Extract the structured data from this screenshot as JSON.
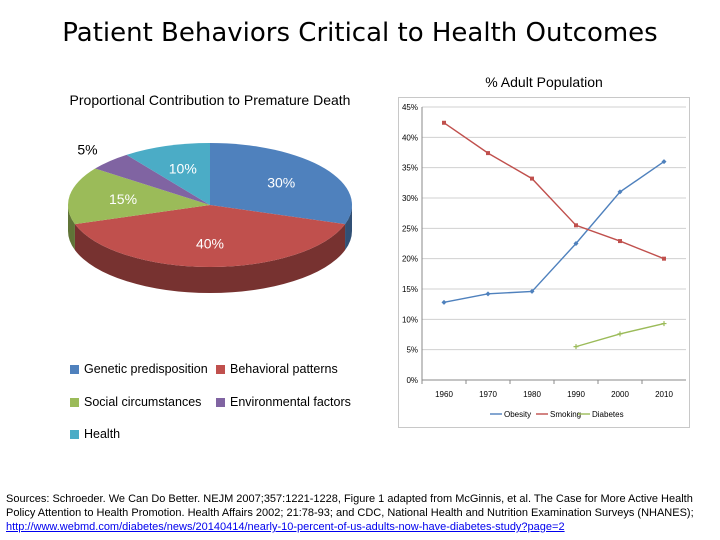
{
  "slide": {
    "title": "Patient Behaviors Critical to Health Outcomes"
  },
  "chart_data": [
    {
      "type": "pie",
      "title": "Proportional Contribution to Premature Death",
      "slices": [
        {
          "label": "Genetic predisposition",
          "value": 30,
          "value_label": "30%",
          "color": "#4f81bd"
        },
        {
          "label": "Behavioral patterns",
          "value": 40,
          "value_label": "40%",
          "color": "#c0504d"
        },
        {
          "label": "Social circumstances",
          "value": 15,
          "value_label": "15%",
          "color": "#9bbb59"
        },
        {
          "label": "Environmental factors",
          "value": 5,
          "value_label": "5%",
          "color": "#8064a2"
        },
        {
          "label": "Health",
          "value": 10,
          "value_label": "10%",
          "color": "#4bacc6"
        }
      ],
      "legend_position": "bottom"
    },
    {
      "type": "line",
      "title": "% Adult Population",
      "x": [
        "1960",
        "1970",
        "1980",
        "1990",
        "2000",
        "2010"
      ],
      "yticks": [
        "0%",
        "5%",
        "10%",
        "15%",
        "20%",
        "25%",
        "30%",
        "35%",
        "40%",
        "45%"
      ],
      "ylim": [
        0,
        45
      ],
      "grid": true,
      "legend_position": "bottom",
      "series": [
        {
          "name": "Obesity",
          "color": "#4f81bd",
          "values": [
            12.8,
            14.2,
            14.6,
            22.5,
            31.0,
            36.0
          ]
        },
        {
          "name": "Smoking",
          "color": "#c0504d",
          "values": [
            42.4,
            37.4,
            33.2,
            25.5,
            22.9,
            20.0
          ]
        },
        {
          "name": "Diabetes",
          "color": "#9bbb59",
          "values": [
            null,
            null,
            null,
            5.5,
            7.6,
            9.3
          ]
        }
      ]
    }
  ],
  "sources": {
    "text": "Sources: Schroeder. We Can Do Better. NEJM 2007;357:1221-1228, Figure 1 adapted from McGinnis, et al. The Case for More Active Health Policy Attention to Health Promotion. Health Affairs 2002; 21:78-93; and CDC, National Health and Nutrition Examination Surveys (NHANES);",
    "link": "http://www.webmd.com/diabetes/news/20140414/nearly-10-percent-of-us-adults-now-have-diabetes-study?page=2"
  }
}
